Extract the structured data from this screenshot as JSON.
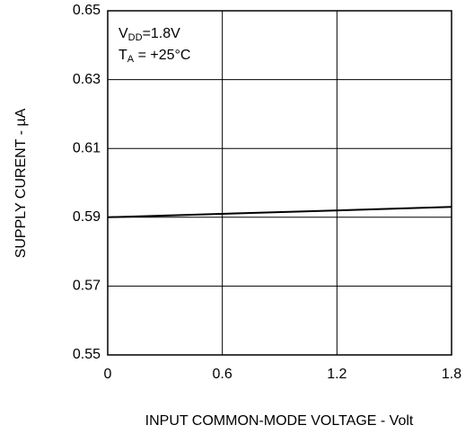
{
  "chart_data": {
    "type": "line",
    "x_label": "INPUT COMMON-MODE VOLTAGE - Volt",
    "y_label": "SUPPLY CURENT - µA",
    "annotations": [
      [
        "V",
        "DD",
        "=1.8V"
      ],
      [
        "T",
        "A",
        " = +25°C"
      ]
    ],
    "x": [
      0,
      1.8
    ],
    "series": [
      {
        "color": "#000000",
        "values": [
          0.59,
          0.593
        ]
      }
    ],
    "xlim": [
      0,
      1.8
    ],
    "xticks": [
      0,
      0.6,
      1.2,
      1.8
    ],
    "ylim": [
      0.55,
      0.65
    ],
    "yticks": [
      0.55,
      0.57,
      0.59,
      0.61,
      0.63,
      0.65
    ],
    "grid": true
  }
}
